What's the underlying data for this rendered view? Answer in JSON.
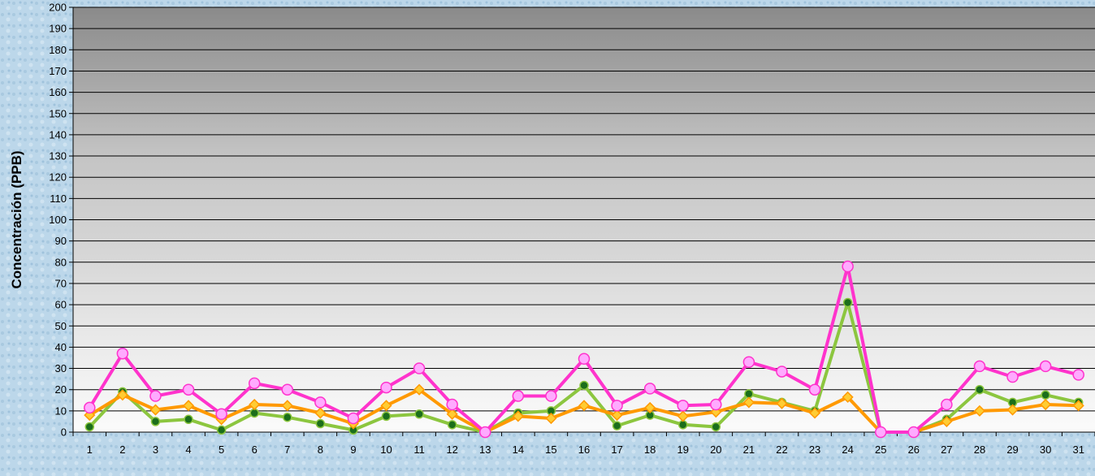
{
  "chart_data": {
    "type": "line",
    "title": "",
    "xlabel": "",
    "ylabel": "Concentración  (PPB)",
    "ylim": [
      0,
      200
    ],
    "ytick_step": 10,
    "grid": true,
    "legend": "none",
    "x": [
      "1",
      "2",
      "3",
      "4",
      "5",
      "6",
      "7",
      "8",
      "9",
      "10",
      "11",
      "12",
      "13",
      "14",
      "15",
      "16",
      "17",
      "18",
      "19",
      "20",
      "21",
      "22",
      "23",
      "24",
      "25",
      "26",
      "27",
      "28",
      "29",
      "30",
      "31"
    ],
    "series": [
      {
        "color": "#8cc63f",
        "marker": "circle",
        "marker_fill": "#1b6e1b",
        "values": [
          2.5,
          19,
          5,
          6,
          1,
          9,
          7,
          4,
          1,
          7.5,
          8.5,
          3.5,
          0,
          9,
          10,
          22,
          3,
          8,
          3.5,
          2.5,
          18,
          14,
          10,
          61,
          0,
          0,
          6,
          20,
          14,
          17.5,
          14
        ]
      },
      {
        "color": "#ff9900",
        "marker": "diamond",
        "marker_fill": "#ffcc33",
        "values": [
          8,
          17.5,
          10.5,
          12.5,
          6,
          13,
          12.5,
          9,
          4,
          12.5,
          20,
          8.5,
          0,
          7.5,
          6.5,
          12.5,
          8,
          11.5,
          7.5,
          9.5,
          14,
          13.5,
          9,
          16.5,
          0,
          0,
          5,
          10,
          10.5,
          13,
          12.5
        ]
      },
      {
        "color": "#ff33cc",
        "marker": "circle",
        "marker_fill": "#ffaaff",
        "values": [
          11.5,
          37,
          17,
          20,
          8.5,
          23,
          20,
          14,
          6.5,
          21,
          30,
          13,
          0,
          17,
          17,
          34.5,
          12.5,
          20.5,
          12.5,
          13,
          33,
          28.5,
          20,
          78,
          0,
          0,
          13,
          31,
          26,
          31,
          27
        ]
      }
    ]
  }
}
